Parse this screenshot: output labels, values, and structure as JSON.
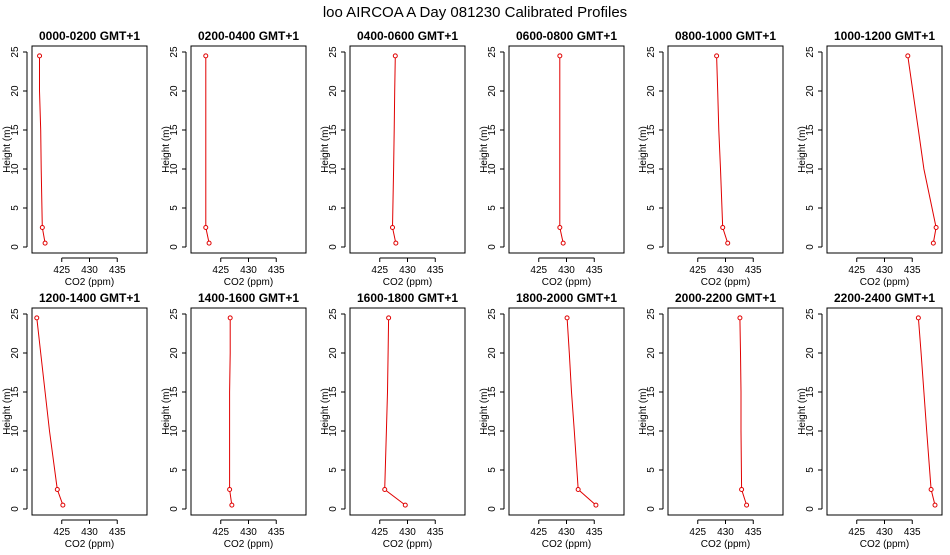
{
  "figure": {
    "title": "loo AIRCOA A  Day 081230  Calibrated Profiles"
  },
  "colors": {
    "series": "#e00000",
    "axes": "#000000",
    "background": "#ffffff"
  },
  "chart_data": [
    {
      "type": "line",
      "title": "0000-0200 GMT+1",
      "xlabel": "CO2 (ppm)",
      "ylabel": "Height (m)",
      "xlim": [
        420,
        440
      ],
      "ylim": [
        0,
        25
      ],
      "xticks": [
        425,
        430,
        435
      ],
      "yticks": [
        0,
        5,
        10,
        15,
        20,
        25
      ],
      "grid": false,
      "series": [
        {
          "x": [
            421.0,
            421.0,
            421.2,
            421.3,
            421.5,
            422.0
          ],
          "y": [
            24.5,
            20,
            15,
            10,
            2.5,
            0.5
          ]
        }
      ]
    },
    {
      "type": "line",
      "title": "0200-0400 GMT+1",
      "xlabel": "CO2 (ppm)",
      "ylabel": "Height (m)",
      "xlim": [
        420,
        440
      ],
      "ylim": [
        0,
        25
      ],
      "xticks": [
        425,
        430,
        435
      ],
      "yticks": [
        0,
        5,
        10,
        15,
        20,
        25
      ],
      "grid": false,
      "series": [
        {
          "x": [
            422.3,
            422.3,
            422.3,
            422.3,
            422.3,
            422.9
          ],
          "y": [
            24.5,
            20,
            15,
            10,
            2.5,
            0.5
          ]
        }
      ]
    },
    {
      "type": "line",
      "title": "0400-0600 GMT+1",
      "xlabel": "CO2 (ppm)",
      "ylabel": "Height (m)",
      "xlim": [
        420,
        440
      ],
      "ylim": [
        0,
        25
      ],
      "xticks": [
        425,
        430,
        435
      ],
      "yticks": [
        0,
        5,
        10,
        15,
        20,
        25
      ],
      "grid": false,
      "series": [
        {
          "x": [
            427.8,
            427.7,
            427.6,
            427.5,
            427.3,
            427.9
          ],
          "y": [
            24.5,
            20,
            15,
            10,
            2.5,
            0.5
          ]
        }
      ]
    },
    {
      "type": "line",
      "title": "0600-0800 GMT+1",
      "xlabel": "CO2 (ppm)",
      "ylabel": "Height (m)",
      "xlim": [
        420,
        440
      ],
      "ylim": [
        0,
        25
      ],
      "xticks": [
        425,
        430,
        435
      ],
      "yticks": [
        0,
        5,
        10,
        15,
        20,
        25
      ],
      "grid": false,
      "series": [
        {
          "x": [
            428.8,
            428.8,
            428.8,
            428.8,
            428.8,
            429.4
          ],
          "y": [
            24.5,
            20,
            15,
            10,
            2.5,
            0.5
          ]
        }
      ]
    },
    {
      "type": "line",
      "title": "0800-1000 GMT+1",
      "xlabel": "CO2 (ppm)",
      "ylabel": "Height (m)",
      "xlim": [
        420,
        440
      ],
      "ylim": [
        0,
        25
      ],
      "xticks": [
        425,
        430,
        435
      ],
      "yticks": [
        0,
        5,
        10,
        15,
        20,
        25
      ],
      "grid": false,
      "series": [
        {
          "x": [
            428.4,
            428.6,
            428.8,
            429.1,
            429.5,
            430.4
          ],
          "y": [
            24.5,
            20,
            15,
            10,
            2.5,
            0.5
          ]
        }
      ]
    },
    {
      "type": "line",
      "title": "1000-1200 GMT+1",
      "xlabel": "CO2 (ppm)",
      "ylabel": "Height (m)",
      "xlim": [
        420,
        440
      ],
      "ylim": [
        0,
        25
      ],
      "xticks": [
        425,
        430,
        435
      ],
      "yticks": [
        0,
        5,
        10,
        15,
        20,
        25
      ],
      "grid": false,
      "series": [
        {
          "x": [
            434.2,
            435.1,
            436.1,
            437.1,
            439.3,
            438.8
          ],
          "y": [
            24.5,
            20,
            15,
            10,
            2.5,
            0.5
          ]
        }
      ]
    },
    {
      "type": "line",
      "title": "1200-1400 GMT+1",
      "xlabel": "CO2 (ppm)",
      "ylabel": "Height (m)",
      "xlim": [
        420,
        440
      ],
      "ylim": [
        0,
        25
      ],
      "xticks": [
        425,
        430,
        435
      ],
      "yticks": [
        0,
        5,
        10,
        15,
        20,
        25
      ],
      "grid": false,
      "series": [
        {
          "x": [
            420.5,
            421.2,
            422.0,
            422.8,
            424.2,
            425.2
          ],
          "y": [
            24.5,
            20,
            15,
            10,
            2.5,
            0.5
          ]
        }
      ]
    },
    {
      "type": "line",
      "title": "1400-1600 GMT+1",
      "xlabel": "CO2 (ppm)",
      "ylabel": "Height (m)",
      "xlim": [
        420,
        440
      ],
      "ylim": [
        0,
        25
      ],
      "xticks": [
        425,
        430,
        435
      ],
      "yticks": [
        0,
        5,
        10,
        15,
        20,
        25
      ],
      "grid": false,
      "series": [
        {
          "x": [
            426.7,
            426.7,
            426.6,
            426.6,
            426.6,
            427.0
          ],
          "y": [
            24.5,
            20,
            15,
            10,
            2.5,
            0.5
          ]
        }
      ]
    },
    {
      "type": "line",
      "title": "1600-1800 GMT+1",
      "xlabel": "CO2 (ppm)",
      "ylabel": "Height (m)",
      "xlim": [
        420,
        440
      ],
      "ylim": [
        0,
        25
      ],
      "xticks": [
        425,
        430,
        435
      ],
      "yticks": [
        0,
        5,
        10,
        15,
        20,
        25
      ],
      "grid": false,
      "series": [
        {
          "x": [
            426.6,
            426.5,
            426.4,
            426.2,
            425.9,
            429.6
          ],
          "y": [
            24.5,
            20,
            15,
            10,
            2.5,
            0.5
          ]
        }
      ]
    },
    {
      "type": "line",
      "title": "1800-2000 GMT+1",
      "xlabel": "CO2 (ppm)",
      "ylabel": "Height (m)",
      "xlim": [
        420,
        440
      ],
      "ylim": [
        0,
        25
      ],
      "xticks": [
        425,
        430,
        435
      ],
      "yticks": [
        0,
        5,
        10,
        15,
        20,
        25
      ],
      "grid": false,
      "series": [
        {
          "x": [
            430.1,
            430.5,
            430.9,
            431.4,
            432.1,
            435.3
          ],
          "y": [
            24.5,
            20,
            15,
            10,
            2.5,
            0.5
          ]
        }
      ]
    },
    {
      "type": "line",
      "title": "2000-2200 GMT+1",
      "xlabel": "CO2 (ppm)",
      "ylabel": "Height (m)",
      "xlim": [
        420,
        440
      ],
      "ylim": [
        0,
        25
      ],
      "xticks": [
        425,
        430,
        435
      ],
      "yticks": [
        0,
        5,
        10,
        15,
        20,
        25
      ],
      "grid": false,
      "series": [
        {
          "x": [
            432.6,
            432.7,
            432.8,
            432.8,
            432.9,
            433.8
          ],
          "y": [
            24.5,
            20,
            15,
            10,
            2.5,
            0.5
          ]
        }
      ]
    },
    {
      "type": "line",
      "title": "2200-2400 GMT+1",
      "xlabel": "CO2 (ppm)",
      "ylabel": "Height (m)",
      "xlim": [
        420,
        440
      ],
      "ylim": [
        0,
        25
      ],
      "xticks": [
        425,
        430,
        435
      ],
      "yticks": [
        0,
        5,
        10,
        15,
        20,
        25
      ],
      "grid": false,
      "series": [
        {
          "x": [
            436.1,
            436.6,
            437.1,
            437.6,
            438.4,
            439.1
          ],
          "y": [
            24.5,
            20,
            15,
            10,
            2.5,
            0.5
          ]
        }
      ]
    }
  ]
}
